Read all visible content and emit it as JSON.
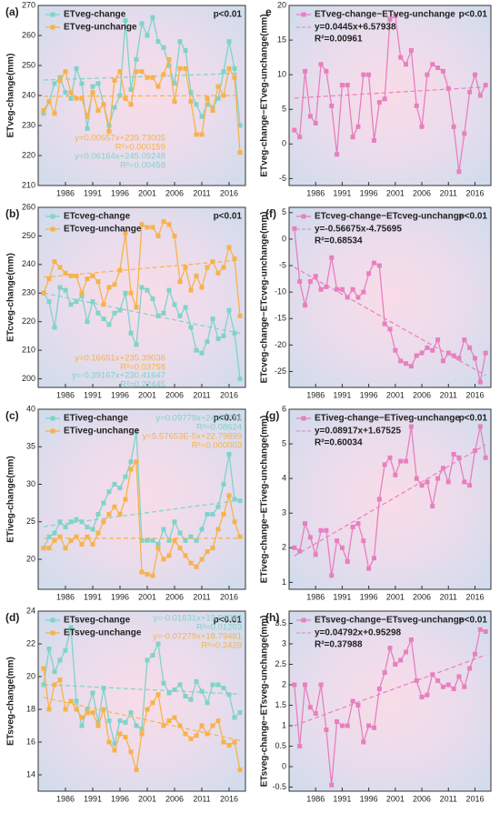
{
  "chart_data": [
    {
      "type": "line",
      "label": "(a)",
      "ylabel": "ETveg-change(mm)",
      "p_label": "p<0.01",
      "x": [
        1982,
        1983,
        1984,
        1985,
        1986,
        1987,
        1988,
        1989,
        1990,
        1991,
        1992,
        1993,
        1994,
        1995,
        1996,
        1997,
        1998,
        1999,
        2000,
        2001,
        2002,
        2003,
        2004,
        2005,
        2006,
        2007,
        2008,
        2009,
        2010,
        2011,
        2012,
        2013,
        2014,
        2015,
        2016,
        2017,
        2018
      ],
      "xlim": [
        1981,
        2019
      ],
      "xticks": [
        1986,
        1991,
        1996,
        2001,
        2006,
        2011,
        2016
      ],
      "ylim": [
        210,
        270
      ],
      "yticks": [
        210,
        220,
        230,
        240,
        250,
        260,
        270
      ],
      "series": [
        {
          "name": "ETveg-change",
          "color": "#7fd3c9",
          "values": [
            234,
            238,
            244,
            246,
            241,
            239,
            249,
            244,
            229,
            243,
            244,
            237,
            230,
            236,
            240,
            265,
            242,
            252,
            264,
            260,
            266,
            258,
            256,
            250,
            244,
            258,
            255,
            241,
            237,
            233,
            237,
            236,
            239,
            248,
            258,
            249,
            230
          ],
          "fit": {
            "slope": 0.06164,
            "intercept": 245.09248,
            "r2": 0.00458,
            "label": "y=0.06164x+245.09248",
            "r2_label": "R²=0.00458"
          }
        },
        {
          "name": "ETveg-unchange",
          "color": "#f7b24a",
          "values": [
            235,
            238,
            234,
            245,
            248,
            241,
            239,
            239,
            233,
            241,
            235,
            237,
            228,
            245,
            248,
            239,
            237,
            248,
            248,
            246,
            246,
            243,
            247,
            252,
            238,
            249,
            249,
            238,
            227,
            227,
            239,
            235,
            243,
            240,
            249,
            246,
            221
          ],
          "fit": {
            "slope": 0.00657,
            "intercept": 239.73005,
            "r2": 0.000159,
            "label": "y=0.00657x+239.73005",
            "r2_label": "R²=0.000159"
          }
        }
      ]
    },
    {
      "type": "line",
      "label": "(b)",
      "ylabel": "ETcveg-change(mm)",
      "p_label": "p<0.01",
      "x": [
        1982,
        1983,
        1984,
        1985,
        1986,
        1987,
        1988,
        1989,
        1990,
        1991,
        1992,
        1993,
        1994,
        1995,
        1996,
        1997,
        1998,
        1999,
        2000,
        2001,
        2002,
        2003,
        2004,
        2005,
        2006,
        2007,
        2008,
        2009,
        2010,
        2011,
        2012,
        2013,
        2014,
        2015,
        2016,
        2017,
        2018
      ],
      "xlim": [
        1981,
        2019
      ],
      "xticks": [
        1986,
        1991,
        1996,
        2001,
        2006,
        2011,
        2016
      ],
      "ylim": [
        197,
        260
      ],
      "yticks": [
        200,
        210,
        220,
        230,
        240,
        250,
        260
      ],
      "series": [
        {
          "name": "ETcveg-change",
          "color": "#7fd3c9",
          "values": [
            230,
            227,
            218,
            232,
            231,
            226,
            227,
            229,
            220,
            227,
            223,
            221,
            219,
            223,
            224,
            230,
            216,
            212,
            232,
            231,
            228,
            222,
            223,
            231,
            226,
            222,
            225,
            218,
            210,
            209,
            213,
            221,
            214,
            215,
            224,
            216,
            200
          ],
          "fit": {
            "slope": -0.39167,
            "intercept": 230.41647,
            "r2": 0.22445,
            "label": "y=-0.39167x+230.41647",
            "r2_label": "R²=0.22445"
          }
        },
        {
          "name": "ETcveg-unchange",
          "color": "#f7b24a",
          "values": [
            230,
            235,
            241,
            239,
            237,
            236,
            236,
            230,
            235,
            236,
            234,
            226,
            232,
            233,
            238,
            251,
            230,
            225,
            254,
            253,
            253,
            250,
            255,
            254,
            250,
            234,
            239,
            231,
            236,
            232,
            239,
            241,
            237,
            239,
            246,
            242,
            222
          ],
          "fit": {
            "slope": 0.16651,
            "intercept": 235.39036,
            "r2": 0.03758,
            "label": "y=0.16651x+235.39036",
            "r2_label": "R²=0.03758"
          }
        }
      ]
    },
    {
      "type": "line",
      "label": "(c)",
      "ylabel": "ETiveg-change(mm)",
      "p_label": "p<0.01",
      "x": [
        1982,
        1983,
        1984,
        1985,
        1986,
        1987,
        1988,
        1989,
        1990,
        1991,
        1992,
        1993,
        1994,
        1995,
        1996,
        1997,
        1998,
        1999,
        2000,
        2001,
        2002,
        2003,
        2004,
        2005,
        2006,
        2007,
        2008,
        2009,
        2010,
        2011,
        2012,
        2013,
        2014,
        2015,
        2016,
        2017,
        2018
      ],
      "xlim": [
        1981,
        2019
      ],
      "xticks": [
        1986,
        1991,
        1996,
        2001,
        2006,
        2011,
        2016
      ],
      "ylim": [
        16,
        40
      ],
      "yticks": [
        20,
        25,
        30,
        35,
        40
      ],
      "series": [
        {
          "name": "ETiveg-change",
          "color": "#7fd3c9",
          "values": [
            21.5,
            23,
            23.5,
            25,
            24.3,
            25,
            25.3,
            25,
            24.3,
            24,
            26,
            27.5,
            29,
            30,
            29.5,
            31,
            33,
            37,
            22.5,
            22.5,
            22.5,
            22,
            24,
            22.5,
            25,
            23.5,
            22.5,
            23,
            22.5,
            24,
            26,
            26,
            27,
            30,
            34,
            28,
            27.8
          ],
          "fit": {
            "slope": 0.09779,
            "intercept": 24.25731,
            "r2": 0.08624,
            "label": "y=0.09779x+24.25731",
            "r2_label": "R²=0.08624"
          }
        },
        {
          "name": "ETiveg-unchange",
          "color": "#f7b24a",
          "values": [
            21.5,
            21.5,
            22.5,
            23,
            21.5,
            22.5,
            23,
            22,
            23,
            22,
            23.5,
            25,
            26,
            27,
            26,
            28,
            32,
            33,
            18.3,
            18,
            17.8,
            21.5,
            20,
            20.5,
            22.5,
            21.5,
            20.5,
            19.5,
            19,
            20,
            21,
            21.5,
            24,
            26,
            28.5,
            25,
            23
          ],
          "fit": {
            "slope": 5.57653e-05,
            "intercept": 22.79899,
            "r2": 3e-06,
            "label": "y=5.57653E-5x+22.79899",
            "r2_label": "R²=0.000003"
          }
        }
      ]
    },
    {
      "type": "line",
      "label": "(d)",
      "ylabel": "ETsveg-change(mm)",
      "p_label": "p<0.01",
      "x": [
        1982,
        1983,
        1984,
        1985,
        1986,
        1987,
        1988,
        1989,
        1990,
        1991,
        1992,
        1993,
        1994,
        1995,
        1996,
        1997,
        1998,
        1999,
        2000,
        2001,
        2002,
        2003,
        2004,
        2005,
        2006,
        2007,
        2008,
        2009,
        2010,
        2011,
        2012,
        2013,
        2014,
        2015,
        2016,
        2017,
        2018
      ],
      "xlim": [
        1981,
        2019
      ],
      "xticks": [
        1986,
        1991,
        1996,
        2001,
        2006,
        2011,
        2016
      ],
      "ylim": [
        13,
        24
      ],
      "yticks": [
        14,
        16,
        18,
        20,
        22,
        24
      ],
      "series": [
        {
          "name": "ETsveg-change",
          "color": "#7fd3c9",
          "values": [
            19.5,
            21.7,
            20.3,
            21,
            21.6,
            23,
            18.5,
            17,
            18,
            19,
            17.2,
            19.3,
            17.3,
            15.9,
            17.3,
            17.2,
            17.8,
            17,
            16.8,
            21,
            21.3,
            22,
            19.6,
            19,
            19.2,
            19.5,
            18.8,
            18.6,
            19.7,
            19.1,
            18.4,
            19.5,
            19.5,
            19.3,
            18.9,
            17.5,
            17.8
          ],
          "fit": {
            "slope": -0.01631,
            "intercept": 19.53083,
            "r2": 0.01203,
            "label": "y=-0.01631x+19.53083",
            "r2_label": "R²=0.01203"
          }
        },
        {
          "name": "ETsveg-unchange",
          "color": "#f7b24a",
          "values": [
            20.5,
            18,
            19.5,
            19.8,
            18,
            18.5,
            18,
            17.5,
            17.8,
            17.8,
            17,
            18,
            16,
            15.5,
            16.5,
            16.3,
            15.4,
            14.3,
            16.5,
            18,
            18.4,
            18.9,
            17,
            17.3,
            17.5,
            17,
            16.5,
            16.2,
            16.4,
            17,
            16.5,
            17,
            17.3,
            16,
            15.8,
            16,
            14.3
          ],
          "fit": {
            "slope": -0.07279,
            "intercept": 18.79481,
            "r2": 0.2429,
            "label": "y=-0.07279x+18.79481",
            "r2_label": "R²=0.2429"
          }
        }
      ]
    },
    {
      "type": "line",
      "label": "e",
      "ylabel": "ETveg-change−ETveg-unchange(mm)",
      "p_label": "p<0.01",
      "x": [
        1982,
        1983,
        1984,
        1985,
        1986,
        1987,
        1988,
        1989,
        1990,
        1991,
        1992,
        1993,
        1994,
        1995,
        1996,
        1997,
        1998,
        1999,
        2000,
        2001,
        2002,
        2003,
        2004,
        2005,
        2006,
        2007,
        2008,
        2009,
        2010,
        2011,
        2012,
        2013,
        2014,
        2015,
        2016,
        2017,
        2018
      ],
      "xlim": [
        1981,
        2019
      ],
      "xticks": [
        1986,
        1991,
        1996,
        2001,
        2006,
        2011,
        2016
      ],
      "ylim": [
        -6,
        20
      ],
      "yticks": [
        -5,
        0,
        5,
        10,
        15,
        20
      ],
      "series": [
        {
          "name": "ETveg-change−ETveg-unchange",
          "color": "#e87fbf",
          "values": [
            2,
            1,
            10.5,
            4,
            3,
            11.5,
            10.5,
            5.5,
            -1.5,
            8.5,
            8.5,
            1,
            2.5,
            10,
            10,
            0.5,
            6,
            6.5,
            18,
            18.5,
            12.5,
            11.5,
            13.5,
            5.5,
            2.5,
            10,
            11.5,
            11,
            10.5,
            8,
            2.5,
            -4,
            1.5,
            7.5,
            10,
            7,
            8.5
          ],
          "fit": {
            "slope": 0.0445,
            "intercept": 6.57938,
            "r2": 0.00961,
            "label": "y=0.0445x+6.57938",
            "r2_label": "R²=0.00961"
          }
        }
      ]
    },
    {
      "type": "line",
      "label": "(f)",
      "ylabel": "ETcveg-change−ETcveg-unchange(mm)",
      "p_label": "p<0.01",
      "x": [
        1982,
        1983,
        1984,
        1985,
        1986,
        1987,
        1988,
        1989,
        1990,
        1991,
        1992,
        1993,
        1994,
        1995,
        1996,
        1997,
        1998,
        1999,
        2000,
        2001,
        2002,
        2003,
        2004,
        2005,
        2006,
        2007,
        2008,
        2009,
        2010,
        2011,
        2012,
        2013,
        2014,
        2015,
        2016,
        2017,
        2018
      ],
      "xlim": [
        1981,
        2019
      ],
      "xticks": [
        1986,
        1991,
        1996,
        2001,
        2006,
        2011,
        2016
      ],
      "ylim": [
        -28,
        6
      ],
      "yticks": [
        -25,
        -20,
        -15,
        -10,
        -5,
        0,
        5
      ],
      "series": [
        {
          "name": "ETcveg-change−ETcveg-unchange",
          "color": "#e87fbf",
          "values": [
            2,
            -8,
            -12.5,
            -8,
            -7,
            -9.5,
            -9,
            -3.5,
            -9.5,
            -9.5,
            -11,
            -9.5,
            -11,
            -10,
            -6.5,
            -4.5,
            -5,
            -16,
            -17,
            -21,
            -23,
            -23.5,
            -24,
            -22,
            -21.5,
            -20.5,
            -21,
            -19,
            -23,
            -21.5,
            -22,
            -22.5,
            -19,
            -20.5,
            -22.5,
            -27,
            -21.5
          ],
          "fit": {
            "slope": -0.56675,
            "intercept": -4.75695,
            "r2": 0.68534,
            "label": "y=-0.56675x-4.75695",
            "r2_label": "R²=0.68534"
          }
        }
      ]
    },
    {
      "type": "line",
      "label": "(g)",
      "ylabel": "ETiveg-change−ETiveg-unchange(mm)",
      "p_label": "p<0.01",
      "x": [
        1982,
        1983,
        1984,
        1985,
        1986,
        1987,
        1988,
        1989,
        1990,
        1991,
        1992,
        1993,
        1994,
        1995,
        1996,
        1997,
        1998,
        1999,
        2000,
        2001,
        2002,
        2003,
        2004,
        2005,
        2006,
        2007,
        2008,
        2009,
        2010,
        2011,
        2012,
        2013,
        2014,
        2015,
        2016,
        2017,
        2018
      ],
      "xlim": [
        1981,
        2019
      ],
      "xticks": [
        1986,
        1991,
        1996,
        2001,
        2006,
        2011,
        2016
      ],
      "ylim": [
        0.8,
        6
      ],
      "yticks": [
        1,
        2,
        3,
        4,
        5,
        6
      ],
      "series": [
        {
          "name": "ETiveg-change−ETiveg-unchange",
          "color": "#e87fbf",
          "values": [
            2,
            1.9,
            2.7,
            2.3,
            1.8,
            2.5,
            2.5,
            1.2,
            2.2,
            2,
            1.6,
            2.6,
            2.7,
            2.2,
            1.4,
            1.7,
            3.4,
            4.4,
            4.6,
            4.1,
            4.5,
            4.5,
            5.5,
            4,
            3.8,
            3.9,
            3.2,
            4,
            4.3,
            3.9,
            4.7,
            4.6,
            3.9,
            3.8,
            4.8,
            5.5,
            4.6
          ],
          "fit": {
            "slope": 0.08917,
            "intercept": 1.67525,
            "r2": 0.60034,
            "label": "y=0.08917x+1.67525",
            "r2_label": "R²=0.60034"
          }
        }
      ]
    },
    {
      "type": "line",
      "label": "(h)",
      "ylabel": "ETsveg-change−ETsveg-unchange(mm)",
      "p_label": "p<0.01",
      "x": [
        1982,
        1983,
        1984,
        1985,
        1986,
        1987,
        1988,
        1989,
        1990,
        1991,
        1992,
        1993,
        1994,
        1995,
        1996,
        1997,
        1998,
        1999,
        2000,
        2001,
        2002,
        2003,
        2004,
        2005,
        2006,
        2007,
        2008,
        2009,
        2010,
        2011,
        2012,
        2013,
        2014,
        2015,
        2016,
        2017,
        2018
      ],
      "xlim": [
        1981,
        2019
      ],
      "xticks": [
        1986,
        1991,
        1996,
        2001,
        2006,
        2011,
        2016
      ],
      "ylim": [
        -0.6,
        3.8
      ],
      "yticks": [
        -0.5,
        0,
        0.5,
        1,
        1.5,
        2,
        2.5,
        3,
        3.5
      ],
      "series": [
        {
          "name": "ETsveg-change−ETsveg-unchange",
          "color": "#e87fbf",
          "values": [
            2,
            0.5,
            2,
            1.45,
            1.3,
            2,
            0.9,
            -0.45,
            1.1,
            1,
            1,
            1.6,
            1.5,
            0.6,
            1,
            0.95,
            1.9,
            2.3,
            2.9,
            2.5,
            2.6,
            2.8,
            3.1,
            2.1,
            1.7,
            1.75,
            2.25,
            2.1,
            1.95,
            2.0,
            1.9,
            2.2,
            1.95,
            2.4,
            2.75,
            3.35,
            3.3
          ],
          "fit": {
            "slope": 0.04792,
            "intercept": 0.95298,
            "r2": 0.37988,
            "label": "y=0.04792x+0.95298",
            "r2_label": "R²=0.37988"
          }
        }
      ]
    }
  ]
}
